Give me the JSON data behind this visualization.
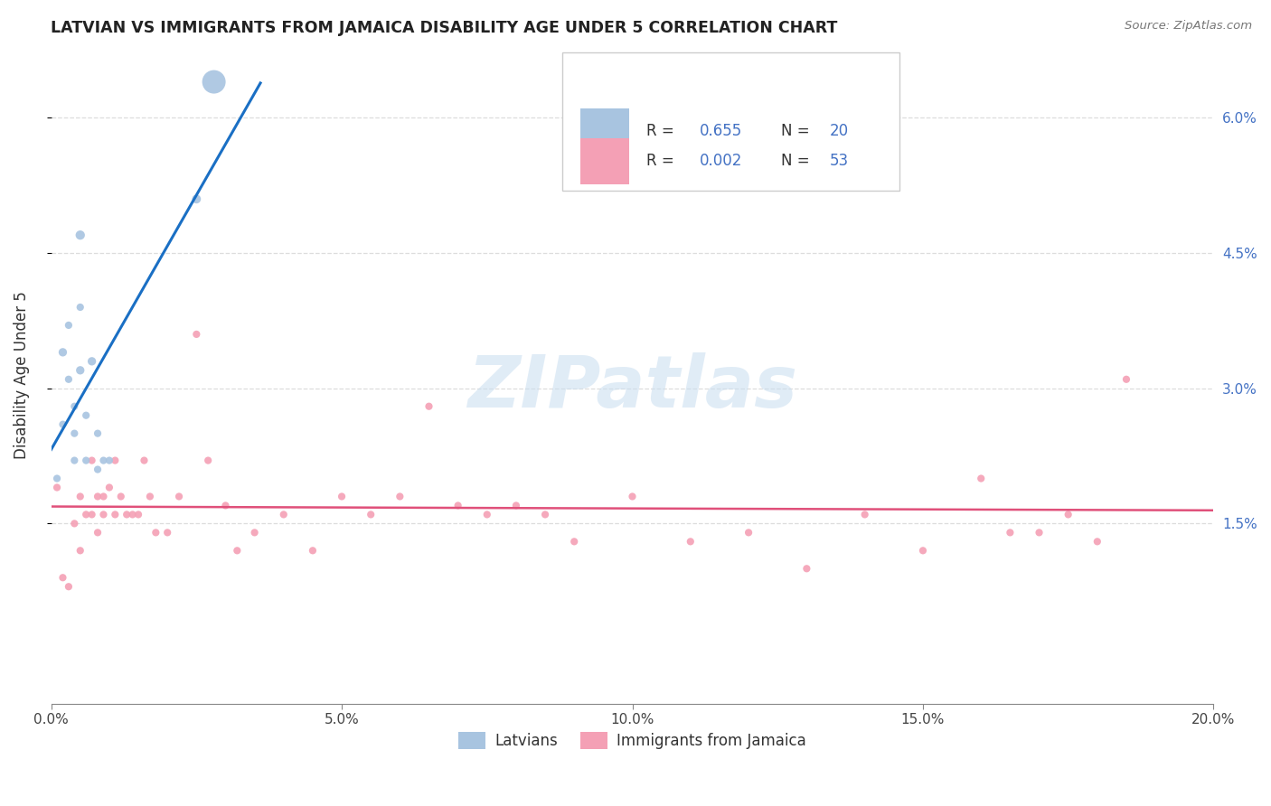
{
  "title": "LATVIAN VS IMMIGRANTS FROM JAMAICA DISABILITY AGE UNDER 5 CORRELATION CHART",
  "source": "Source: ZipAtlas.com",
  "ylabel": "Disability Age Under 5",
  "xlim": [
    0.0,
    0.2
  ],
  "ylim": [
    -0.005,
    0.068
  ],
  "yticks": [
    0.015,
    0.03,
    0.045,
    0.06
  ],
  "ytick_labels": [
    "1.5%",
    "3.0%",
    "4.5%",
    "6.0%"
  ],
  "xticks": [
    0.0,
    0.05,
    0.1,
    0.15,
    0.2
  ],
  "xtick_labels": [
    "0.0%",
    "5.0%",
    "10.0%",
    "15.0%",
    "20.0%"
  ],
  "latvian_color": "#a8c4e0",
  "jamaica_color": "#f4a0b5",
  "trend_blue": "#1a6fc4",
  "trend_pink": "#e0507a",
  "watermark": "ZIPatlas",
  "watermark_color": "#c8ddf0",
  "latvians_label": "Latvians",
  "jamaica_label": "Immigrants from Jamaica",
  "latvian_x": [
    0.001,
    0.002,
    0.002,
    0.003,
    0.003,
    0.004,
    0.004,
    0.004,
    0.005,
    0.005,
    0.005,
    0.006,
    0.006,
    0.007,
    0.008,
    0.008,
    0.009,
    0.01,
    0.025,
    0.028
  ],
  "latvian_y": [
    0.02,
    0.026,
    0.034,
    0.031,
    0.037,
    0.028,
    0.025,
    0.022,
    0.047,
    0.039,
    0.032,
    0.027,
    0.022,
    0.033,
    0.025,
    0.021,
    0.022,
    0.022,
    0.051,
    0.064
  ],
  "latvian_size": [
    35,
    35,
    45,
    35,
    35,
    35,
    35,
    35,
    55,
    35,
    45,
    35,
    35,
    45,
    35,
    35,
    35,
    35,
    50,
    350
  ],
  "jamaica_x": [
    0.001,
    0.002,
    0.003,
    0.004,
    0.005,
    0.005,
    0.006,
    0.007,
    0.007,
    0.008,
    0.008,
    0.009,
    0.009,
    0.01,
    0.011,
    0.011,
    0.012,
    0.013,
    0.014,
    0.015,
    0.016,
    0.017,
    0.018,
    0.02,
    0.022,
    0.025,
    0.027,
    0.03,
    0.032,
    0.035,
    0.04,
    0.045,
    0.05,
    0.055,
    0.06,
    0.065,
    0.07,
    0.075,
    0.08,
    0.085,
    0.09,
    0.1,
    0.11,
    0.12,
    0.13,
    0.14,
    0.15,
    0.16,
    0.17,
    0.18,
    0.185,
    0.175,
    0.165
  ],
  "jamaica_y": [
    0.019,
    0.009,
    0.008,
    0.015,
    0.018,
    0.012,
    0.016,
    0.022,
    0.016,
    0.018,
    0.014,
    0.018,
    0.016,
    0.019,
    0.016,
    0.022,
    0.018,
    0.016,
    0.016,
    0.016,
    0.022,
    0.018,
    0.014,
    0.014,
    0.018,
    0.036,
    0.022,
    0.017,
    0.012,
    0.014,
    0.016,
    0.012,
    0.018,
    0.016,
    0.018,
    0.028,
    0.017,
    0.016,
    0.017,
    0.016,
    0.013,
    0.018,
    0.013,
    0.014,
    0.01,
    0.016,
    0.012,
    0.02,
    0.014,
    0.013,
    0.031,
    0.016,
    0.014
  ],
  "jamaica_size": [
    35,
    35,
    35,
    35,
    35,
    35,
    35,
    35,
    35,
    35,
    35,
    35,
    35,
    35,
    35,
    35,
    35,
    35,
    35,
    35,
    35,
    35,
    35,
    35,
    35,
    35,
    35,
    35,
    35,
    35,
    35,
    35,
    35,
    35,
    35,
    35,
    35,
    35,
    35,
    35,
    35,
    35,
    35,
    35,
    35,
    35,
    35,
    35,
    35,
    35,
    35,
    35,
    35
  ]
}
